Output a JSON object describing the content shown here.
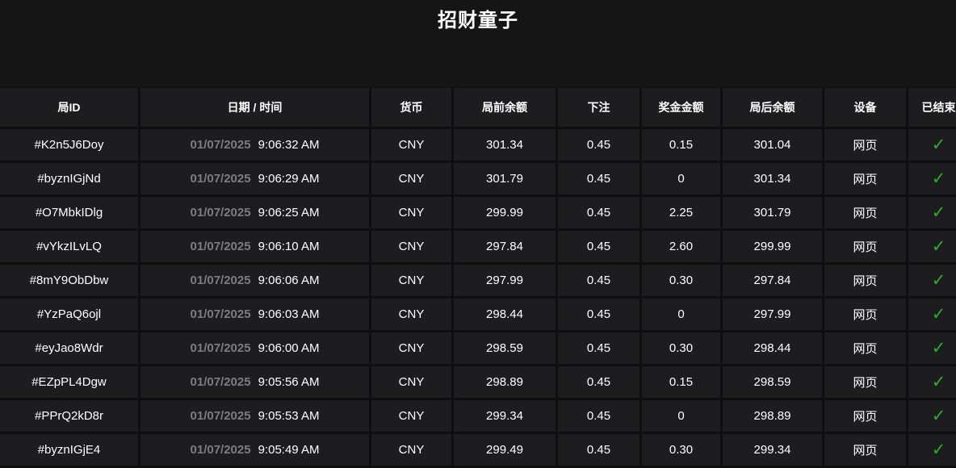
{
  "title": "招财童子",
  "table": {
    "columns": [
      {
        "key": "round_id",
        "label": "局ID"
      },
      {
        "key": "datetime",
        "label": "日期 / 时间"
      },
      {
        "key": "currency",
        "label": "货币"
      },
      {
        "key": "balance_before",
        "label": "局前余额"
      },
      {
        "key": "bet",
        "label": "下注"
      },
      {
        "key": "prize",
        "label": "奖金金额"
      },
      {
        "key": "balance_after",
        "label": "局后余额"
      },
      {
        "key": "device",
        "label": "设备"
      },
      {
        "key": "finished",
        "label": "已结束"
      }
    ],
    "rows": [
      {
        "round_id": "#K2n5J6Doy",
        "date": "01/07/2025",
        "time": "9:06:32 AM",
        "currency": "CNY",
        "balance_before": "301.34",
        "bet": "0.45",
        "prize": "0.15",
        "balance_after": "301.04",
        "device": "网页",
        "finished": true
      },
      {
        "round_id": "#byznIGjNd",
        "date": "01/07/2025",
        "time": "9:06:29 AM",
        "currency": "CNY",
        "balance_before": "301.79",
        "bet": "0.45",
        "prize": "0",
        "balance_after": "301.34",
        "device": "网页",
        "finished": true
      },
      {
        "round_id": "#O7MbkIDlg",
        "date": "01/07/2025",
        "time": "9:06:25 AM",
        "currency": "CNY",
        "balance_before": "299.99",
        "bet": "0.45",
        "prize": "2.25",
        "balance_after": "301.79",
        "device": "网页",
        "finished": true
      },
      {
        "round_id": "#vYkzILvLQ",
        "date": "01/07/2025",
        "time": "9:06:10 AM",
        "currency": "CNY",
        "balance_before": "297.84",
        "bet": "0.45",
        "prize": "2.60",
        "balance_after": "299.99",
        "device": "网页",
        "finished": true
      },
      {
        "round_id": "#8mY9ObDbw",
        "date": "01/07/2025",
        "time": "9:06:06 AM",
        "currency": "CNY",
        "balance_before": "297.99",
        "bet": "0.45",
        "prize": "0.30",
        "balance_after": "297.84",
        "device": "网页",
        "finished": true
      },
      {
        "round_id": "#YzPaQ6ojl",
        "date": "01/07/2025",
        "time": "9:06:03 AM",
        "currency": "CNY",
        "balance_before": "298.44",
        "bet": "0.45",
        "prize": "0",
        "balance_after": "297.99",
        "device": "网页",
        "finished": true
      },
      {
        "round_id": "#eyJao8Wdr",
        "date": "01/07/2025",
        "time": "9:06:00 AM",
        "currency": "CNY",
        "balance_before": "298.59",
        "bet": "0.45",
        "prize": "0.30",
        "balance_after": "298.44",
        "device": "网页",
        "finished": true
      },
      {
        "round_id": "#EZpPL4Dgw",
        "date": "01/07/2025",
        "time": "9:05:56 AM",
        "currency": "CNY",
        "balance_before": "298.89",
        "bet": "0.45",
        "prize": "0.15",
        "balance_after": "298.59",
        "device": "网页",
        "finished": true
      },
      {
        "round_id": "#PPrQ2kD8r",
        "date": "01/07/2025",
        "time": "9:05:53 AM",
        "currency": "CNY",
        "balance_before": "299.34",
        "bet": "0.45",
        "prize": "0",
        "balance_after": "298.89",
        "device": "网页",
        "finished": true
      },
      {
        "round_id": "#byznIGjE4",
        "date": "01/07/2025",
        "time": "9:05:49 AM",
        "currency": "CNY",
        "balance_before": "299.49",
        "bet": "0.45",
        "prize": "0.30",
        "balance_after": "299.34",
        "device": "网页",
        "finished": true
      }
    ]
  },
  "icons": {
    "finished_check": "✓"
  },
  "colors": {
    "check_green": "#32aa32",
    "date_gray": "#7d7d7d"
  }
}
